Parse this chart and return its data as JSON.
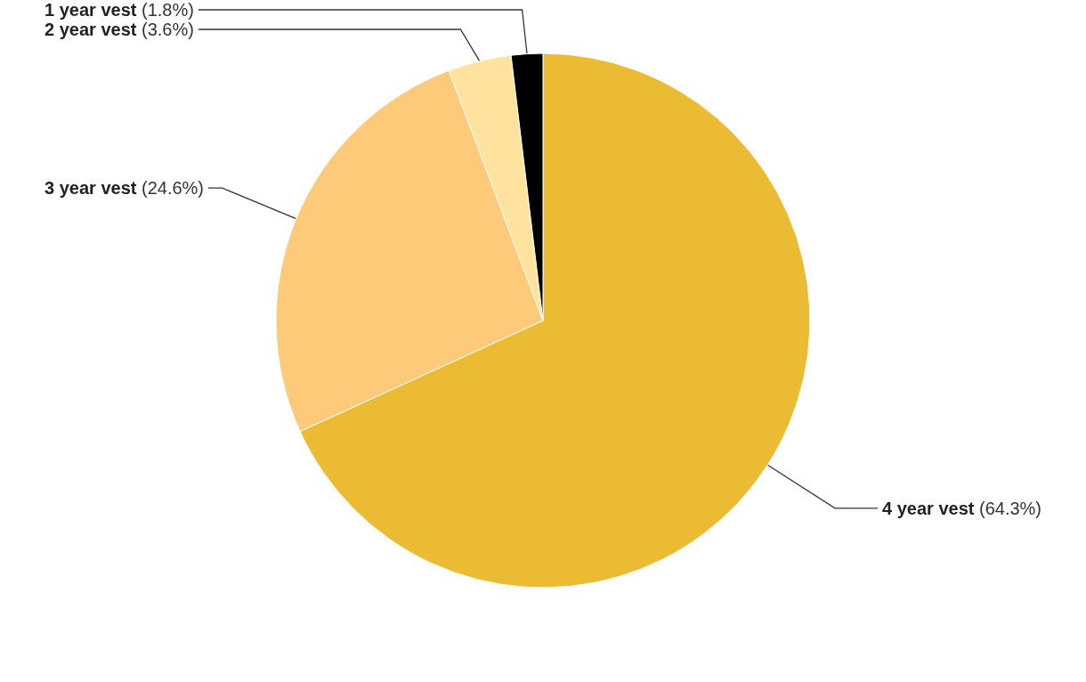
{
  "chart_data": {
    "type": "pie",
    "categories": [
      "4 year vest",
      "3 year vest",
      "2 year vest",
      "1 year vest"
    ],
    "values": [
      64.3,
      24.6,
      3.6,
      1.8
    ],
    "value_labels": [
      "(64.3%)",
      "(24.6%)",
      "(3.6%)",
      "(1.8%)"
    ],
    "colors": [
      "#ebbb33",
      "#fdca7a",
      "#ffe29d",
      "#000000"
    ],
    "legend": false
  }
}
